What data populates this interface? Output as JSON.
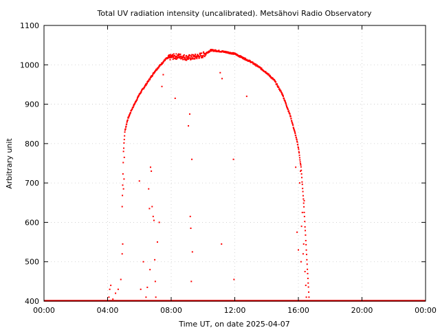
{
  "chart_data": {
    "type": "scatter",
    "title": "Total UV radiation intensity (uncalibrated). Metsähovi Radio Observatory",
    "xlabel": "Time UT, on date 2025-04-07",
    "ylabel": "Arbitrary unit",
    "xlim": [
      "00:00",
      "24:00"
    ],
    "ylim": [
      400,
      1100
    ],
    "grid": true,
    "point_color": "#ff0000",
    "xticks": [
      "00:00",
      "04:00",
      "08:00",
      "12:00",
      "16:00",
      "20:00",
      "00:00"
    ],
    "yticks": [
      400,
      500,
      600,
      700,
      800,
      900,
      1000,
      1100
    ],
    "baseline": {
      "value": 400,
      "from": "00:00",
      "to": "24:00"
    },
    "envelope": [
      [
        "04:55",
        640
      ],
      [
        "05:00",
        780
      ],
      [
        "05:05",
        830
      ],
      [
        "05:15",
        860
      ],
      [
        "05:30",
        885
      ],
      [
        "05:45",
        905
      ],
      [
        "06:00",
        925
      ],
      [
        "06:15",
        940
      ],
      [
        "06:30",
        955
      ],
      [
        "06:45",
        970
      ],
      [
        "07:00",
        985
      ],
      [
        "07:20",
        1000
      ],
      [
        "07:40",
        1015
      ],
      [
        "08:00",
        1020
      ],
      [
        "08:30",
        1022
      ],
      [
        "09:00",
        1018
      ],
      [
        "09:30",
        1020
      ],
      [
        "10:00",
        1025
      ],
      [
        "10:30",
        1037
      ],
      [
        "11:00",
        1035
      ],
      [
        "11:30",
        1032
      ],
      [
        "12:00",
        1028
      ],
      [
        "12:30",
        1018
      ],
      [
        "13:00",
        1008
      ],
      [
        "13:30",
        995
      ],
      [
        "14:00",
        980
      ],
      [
        "14:30",
        960
      ],
      [
        "15:00",
        925
      ],
      [
        "15:30",
        870
      ],
      [
        "15:50",
        820
      ],
      [
        "16:00",
        790
      ],
      [
        "16:10",
        740
      ],
      [
        "16:20",
        650
      ],
      [
        "16:30",
        530
      ],
      [
        "16:40",
        410
      ]
    ],
    "outliers": [
      [
        "04:05",
        410
      ],
      [
        "04:08",
        430
      ],
      [
        "04:12",
        440
      ],
      [
        "04:20",
        405
      ],
      [
        "04:30",
        420
      ],
      [
        "04:40",
        430
      ],
      [
        "04:50",
        455
      ],
      [
        "04:55",
        520
      ],
      [
        "04:57",
        545
      ],
      [
        "05:00",
        685
      ],
      [
        "05:02",
        710
      ],
      [
        "05:03",
        765
      ],
      [
        "06:00",
        705
      ],
      [
        "06:05",
        430
      ],
      [
        "06:15",
        500
      ],
      [
        "06:25",
        410
      ],
      [
        "06:30",
        435
      ],
      [
        "06:35",
        685
      ],
      [
        "06:38",
        635
      ],
      [
        "06:40",
        480
      ],
      [
        "06:42",
        740
      ],
      [
        "06:45",
        730
      ],
      [
        "06:48",
        640
      ],
      [
        "06:52",
        615
      ],
      [
        "06:55",
        605
      ],
      [
        "06:58",
        505
      ],
      [
        "07:00",
        450
      ],
      [
        "07:02",
        410
      ],
      [
        "07:08",
        550
      ],
      [
        "07:15",
        600
      ],
      [
        "07:25",
        945
      ],
      [
        "07:30",
        975
      ],
      [
        "08:15",
        915
      ],
      [
        "09:05",
        845
      ],
      [
        "09:10",
        875
      ],
      [
        "09:12",
        615
      ],
      [
        "09:14",
        585
      ],
      [
        "09:16",
        450
      ],
      [
        "09:18",
        760
      ],
      [
        "09:20",
        525
      ],
      [
        "11:05",
        980
      ],
      [
        "11:10",
        545
      ],
      [
        "11:12",
        965
      ],
      [
        "11:55",
        760
      ],
      [
        "11:57",
        455
      ],
      [
        "12:45",
        920
      ],
      [
        "15:50",
        740
      ],
      [
        "15:55",
        575
      ],
      [
        "16:00",
        530
      ],
      [
        "16:05",
        700
      ],
      [
        "16:08",
        730
      ],
      [
        "16:10",
        500
      ],
      [
        "16:12",
        590
      ],
      [
        "16:15",
        625
      ],
      [
        "16:18",
        520
      ],
      [
        "16:20",
        545
      ],
      [
        "16:22",
        655
      ],
      [
        "16:25",
        475
      ],
      [
        "16:28",
        440
      ],
      [
        "16:30",
        410
      ]
    ]
  }
}
